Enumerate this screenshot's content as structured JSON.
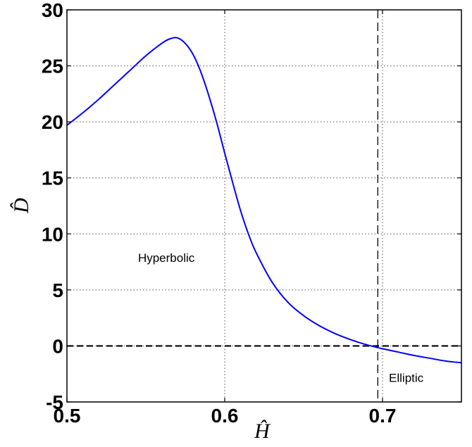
{
  "chart_data": {
    "type": "line",
    "title": "",
    "xlabel": "Ĥ",
    "ylabel": "D̂",
    "xlim": [
      0.5,
      0.75
    ],
    "ylim": [
      -5,
      30
    ],
    "x_ticks": [
      "0.5",
      "0.6",
      "0.7"
    ],
    "y_ticks": [
      "-5",
      "0",
      "5",
      "10",
      "15",
      "20",
      "25",
      "30"
    ],
    "grid": true,
    "colors": {
      "curve": "#0000ff",
      "reference": "#000000",
      "grid": "#555555"
    },
    "series": [
      {
        "x": [
          0.5,
          0.51,
          0.52,
          0.53,
          0.54,
          0.55,
          0.56,
          0.565,
          0.57,
          0.575,
          0.58,
          0.585,
          0.59,
          0.595,
          0.6,
          0.605,
          0.61,
          0.615,
          0.62,
          0.63,
          0.64,
          0.65,
          0.66,
          0.67,
          0.68,
          0.69,
          0.7,
          0.71,
          0.72,
          0.73,
          0.74,
          0.75
        ],
        "y": [
          19.7,
          20.8,
          22.0,
          23.3,
          24.6,
          25.9,
          27.0,
          27.4,
          27.5,
          27.0,
          26.0,
          24.4,
          22.3,
          19.9,
          17.2,
          14.6,
          12.1,
          10.0,
          8.3,
          5.7,
          3.9,
          2.7,
          1.8,
          1.1,
          0.55,
          0.1,
          -0.25,
          -0.55,
          -0.85,
          -1.1,
          -1.35,
          -1.5
        ]
      }
    ],
    "reference_lines": {
      "horizontal_y": 0,
      "vertical_x": 0.697
    },
    "annotations": [
      {
        "text": "Hyperbolic",
        "x": 0.563,
        "y": 7.5
      },
      {
        "text": "Elliptic",
        "x": 0.715,
        "y": -3.2
      }
    ]
  }
}
